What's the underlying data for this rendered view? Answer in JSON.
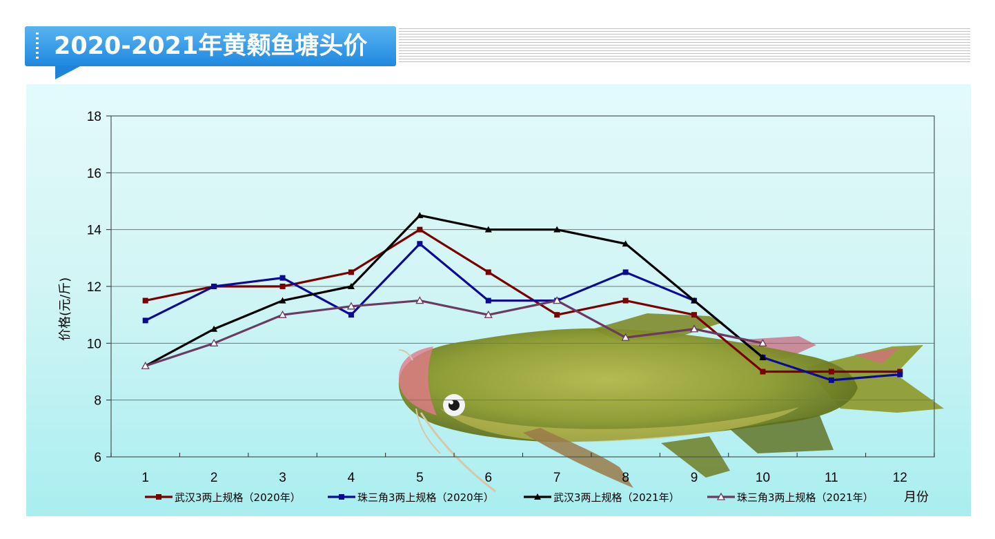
{
  "banner": {
    "title": "2020-2021年黄颡鱼塘头价"
  },
  "colors": {
    "banner": "#1e88df",
    "panel_top": "#e3fafa",
    "panel_bottom": "#a9eef0",
    "fish_body": "#8e9a2e"
  },
  "chart_data": {
    "type": "line",
    "title": "2020-2021年黄颡鱼塘头价",
    "xlabel": "月份",
    "ylabel": "价格(元/斤)",
    "categories": [
      "1",
      "2",
      "3",
      "4",
      "5",
      "6",
      "7",
      "8",
      "9",
      "10",
      "11",
      "12"
    ],
    "ylim": [
      6,
      18
    ],
    "yticks": [
      6,
      8,
      10,
      12,
      14,
      16,
      18
    ],
    "grid": true,
    "legend_position": "bottom",
    "series": [
      {
        "name": "武汉3两上规格（2020年）",
        "color": "#7a0000",
        "marker": "square",
        "values": [
          11.5,
          12,
          12,
          12.5,
          14,
          12.5,
          11,
          11.5,
          11,
          9,
          9,
          9
        ]
      },
      {
        "name": "珠三角3两上规格（2020年）",
        "color": "#0a0a96",
        "marker": "square",
        "values": [
          10.8,
          12,
          12.3,
          11,
          13.5,
          11.5,
          11.5,
          12.5,
          11.5,
          9.5,
          8.7,
          8.9
        ]
      },
      {
        "name": "武汉3两上规格（2021年）",
        "color": "#000000",
        "marker": "triangle",
        "values": [
          9.2,
          10.5,
          11.5,
          12,
          14.5,
          14,
          14,
          13.5,
          11.5,
          9.5,
          null,
          null
        ]
      },
      {
        "name": "珠三角3两上规格（2021年）",
        "color": "#6a3a60",
        "marker": "triangle-open",
        "values": [
          9.2,
          10,
          11,
          11.3,
          11.5,
          11,
          11.5,
          10.2,
          10.5,
          10,
          null,
          null
        ]
      }
    ]
  }
}
